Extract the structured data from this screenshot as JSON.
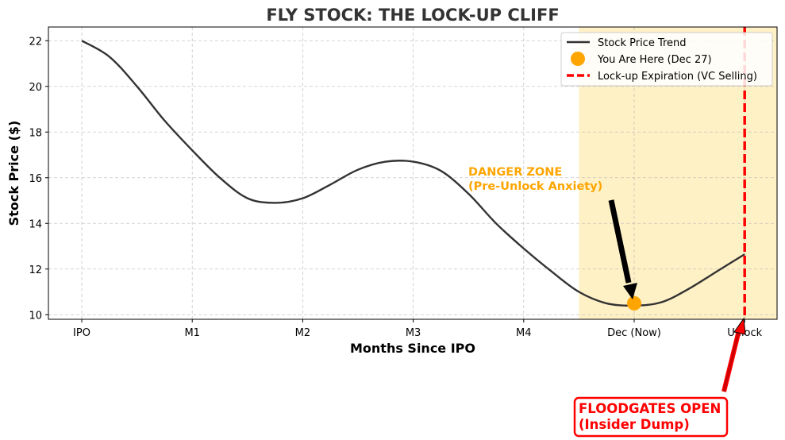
{
  "chart_data": {
    "type": "line",
    "title": "FLY STOCK: THE LOCK-UP CLIFF",
    "xlabel": "Months Since IPO",
    "ylabel": "Stock Price ($)",
    "categories": [
      "IPO",
      "M1",
      "M2",
      "M3",
      "M4",
      "Dec (Now)",
      "Unlock"
    ],
    "ylim": [
      9.8,
      22.6
    ],
    "yticks": [
      10,
      12,
      14,
      16,
      18,
      20,
      22
    ],
    "grid": true,
    "legend_position": "top-right",
    "series": [
      {
        "name": "Stock Price Trend",
        "color": "#333333",
        "x": [
          0,
          0.25,
          0.5,
          0.75,
          1.0,
          1.25,
          1.5,
          1.75,
          2.0,
          2.25,
          2.5,
          2.75,
          3.0,
          3.25,
          3.5,
          3.75,
          4.0,
          4.25,
          4.5,
          4.75,
          5.0,
          5.25,
          5.5,
          5.75,
          6.0
        ],
        "y": [
          22.0,
          21.3,
          20.0,
          18.5,
          17.2,
          16.0,
          15.1,
          14.9,
          15.1,
          15.7,
          16.35,
          16.7,
          16.7,
          16.3,
          15.3,
          14.0,
          12.9,
          11.9,
          11.0,
          10.5,
          10.4,
          10.55,
          11.15,
          11.9,
          12.65
        ]
      }
    ],
    "you_are_here": {
      "label": "You Are Here (Dec 27)",
      "x": 5,
      "y": 10.5,
      "color": "#ffa500"
    },
    "lockup": {
      "label": "Lock-up Expiration (VC Selling)",
      "x": 6,
      "color": "#ff0000"
    },
    "danger_zone": {
      "x_start": 4.5,
      "x_end": 6.3,
      "color": "#ffeeb8"
    },
    "annotations": {
      "danger_line1": "DANGER ZONE",
      "danger_line2": "(Pre-Unlock Anxiety)",
      "danger_color": "#ffa500",
      "flood_line1": "FLOODGATES OPEN",
      "flood_line2": "(Insider Dump)",
      "flood_color": "#ff0000"
    }
  }
}
